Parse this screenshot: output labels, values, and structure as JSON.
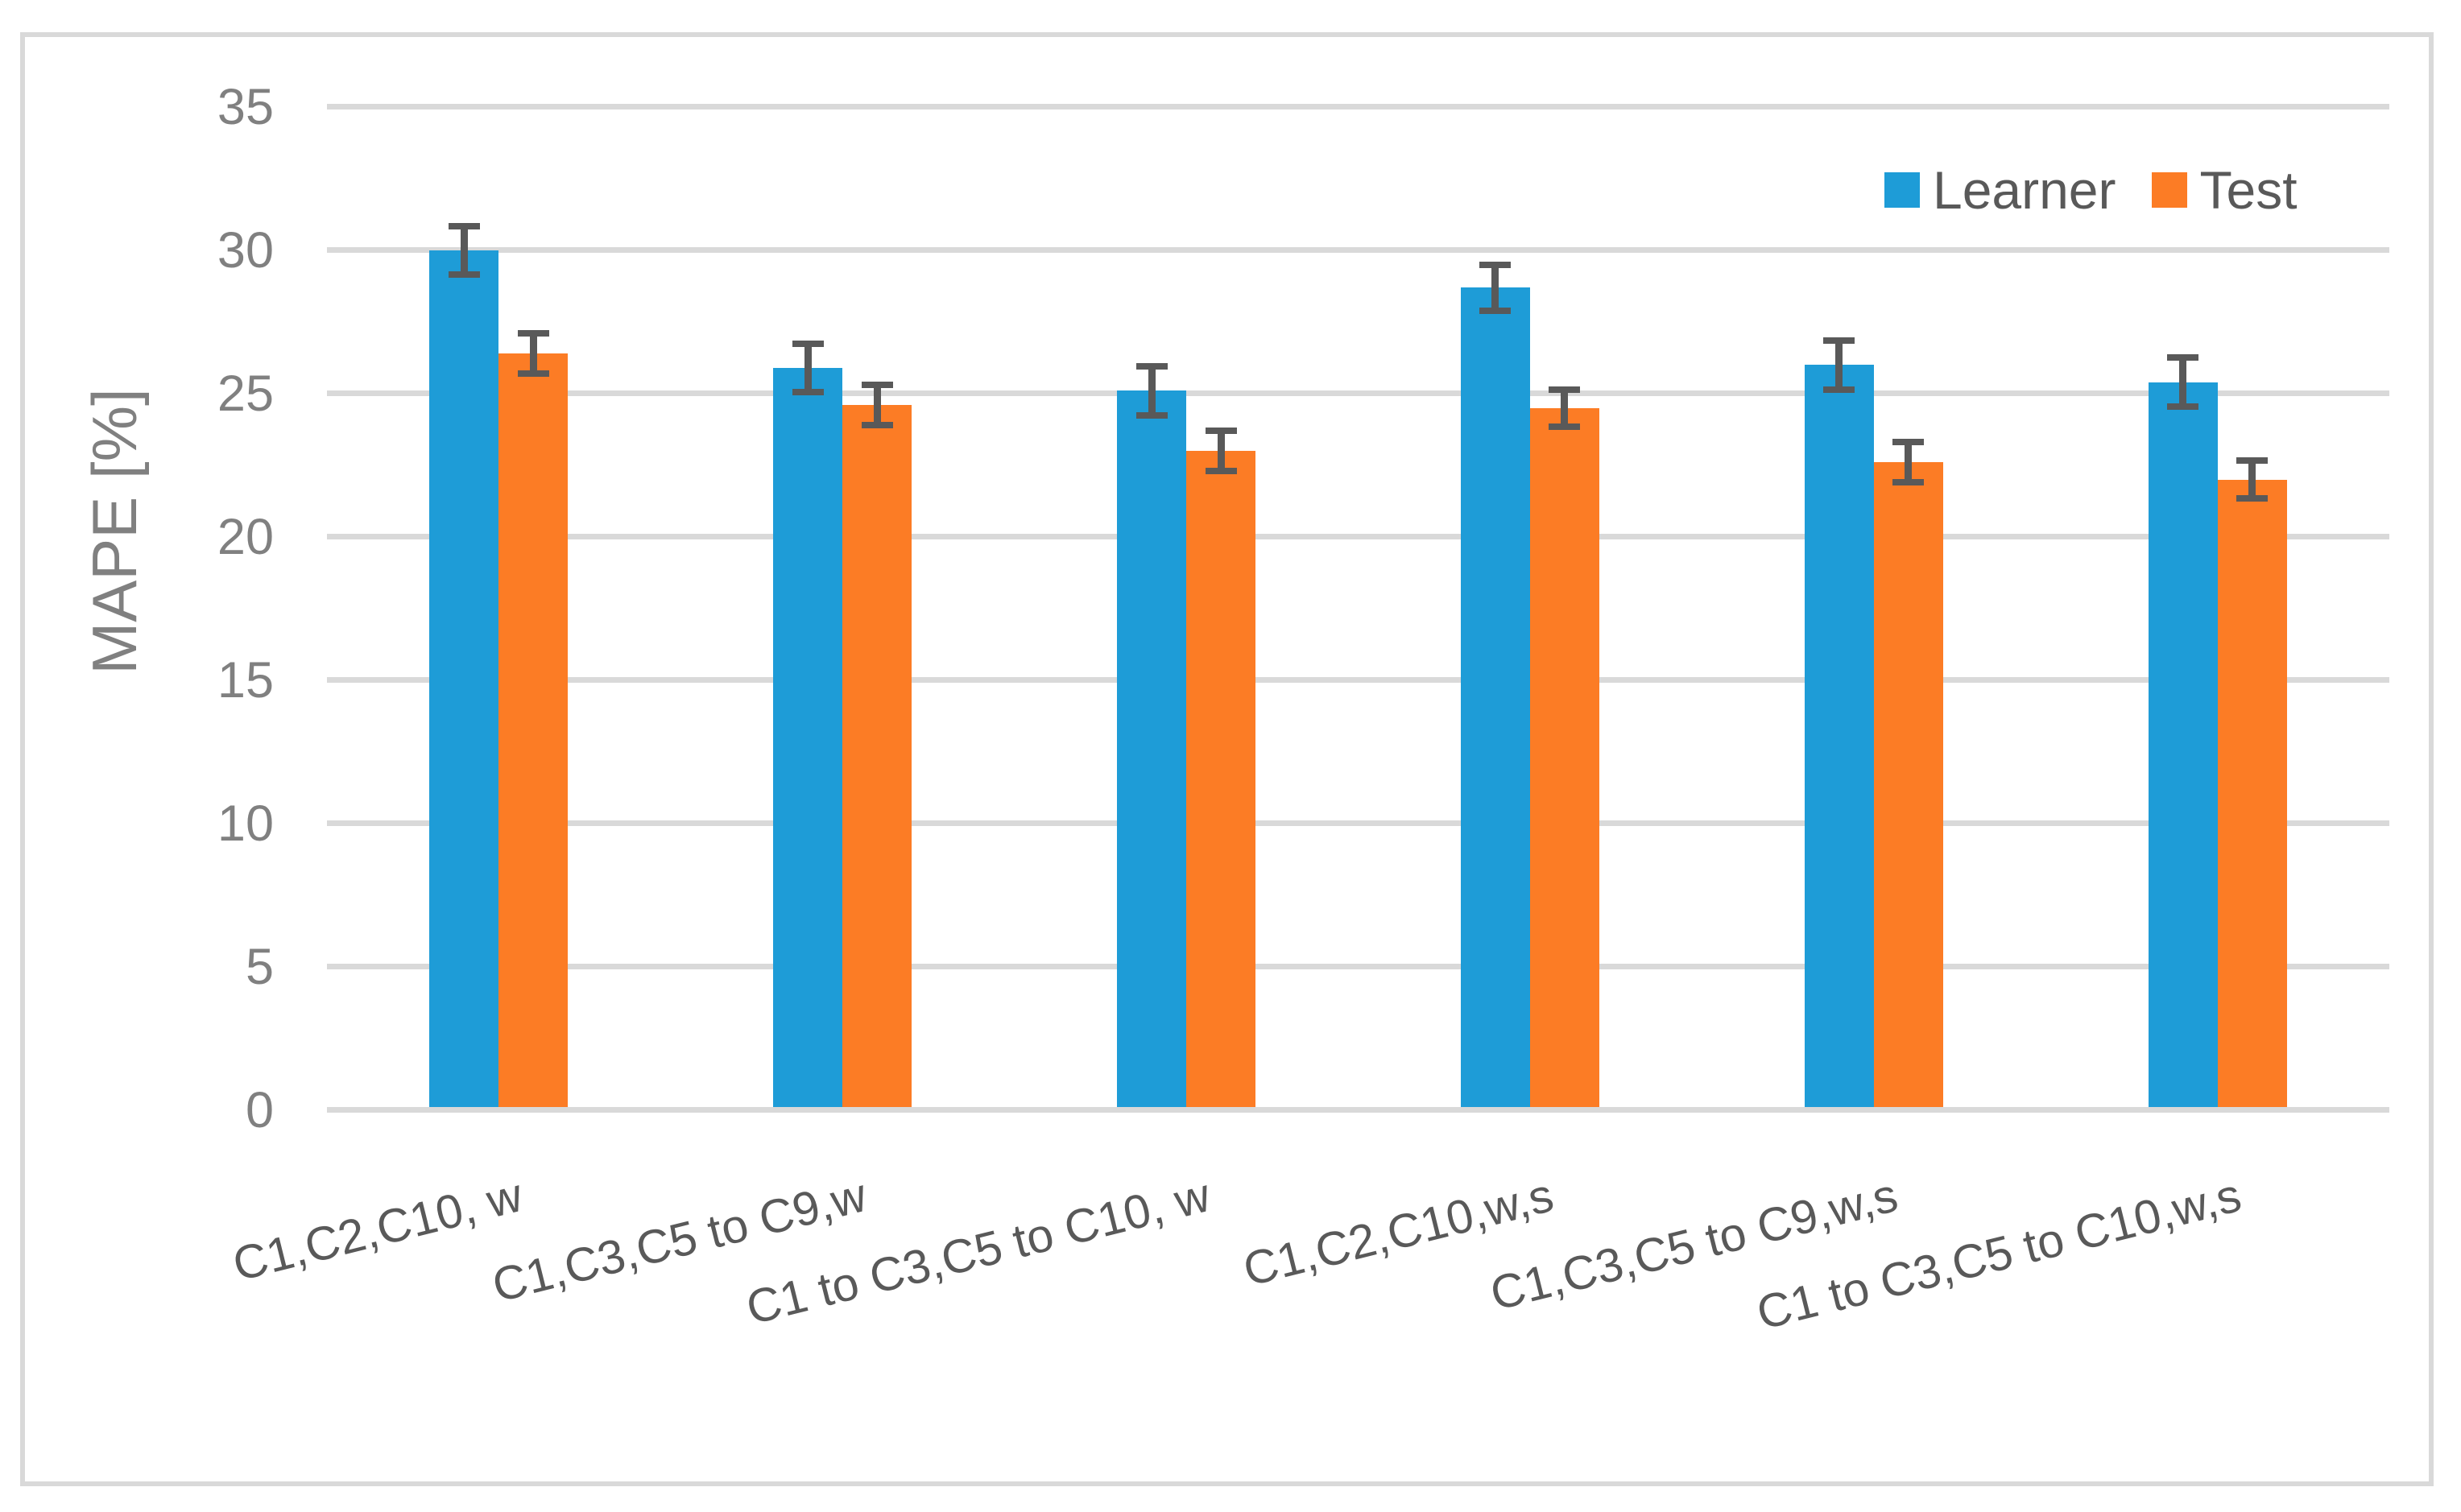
{
  "chart_data": {
    "type": "bar",
    "title": "",
    "xlabel": "",
    "ylabel": "MAPE [%]",
    "ylim": [
      0,
      35
    ],
    "yticks": [
      0,
      5,
      10,
      15,
      20,
      25,
      30,
      35
    ],
    "grid": true,
    "legend_position": "top-right",
    "error_bars": true,
    "categories": [
      "C1,C2,C10, w",
      "C1,C3,C5 to C9,w",
      "C1 to C3,C5 to C10, w",
      "C1,C2,C10,w,s",
      "C1,C3,C5 to C9,w,s",
      "C1 to C3,C5 to C10,w,s"
    ],
    "series": [
      {
        "name": "Learner",
        "color": "#1E9CD7",
        "values": [
          30.0,
          25.9,
          25.1,
          28.7,
          26.0,
          25.4
        ],
        "errors": [
          0.85,
          0.85,
          0.85,
          0.8,
          0.85,
          0.85
        ]
      },
      {
        "name": "Test",
        "color": "#FC7C25",
        "values": [
          26.4,
          24.6,
          23.0,
          24.5,
          22.6,
          22.0
        ],
        "errors": [
          0.7,
          0.7,
          0.7,
          0.65,
          0.7,
          0.65
        ]
      }
    ]
  },
  "colors": {
    "gridline": "#D9D9D9",
    "frame_border": "#D9D9D9",
    "error_bar": "#595959",
    "tick_text": "#808080",
    "axis_title_text": "#808080",
    "category_text": "#595959",
    "legend_text": "#595959",
    "background": "#FFFFFF"
  }
}
